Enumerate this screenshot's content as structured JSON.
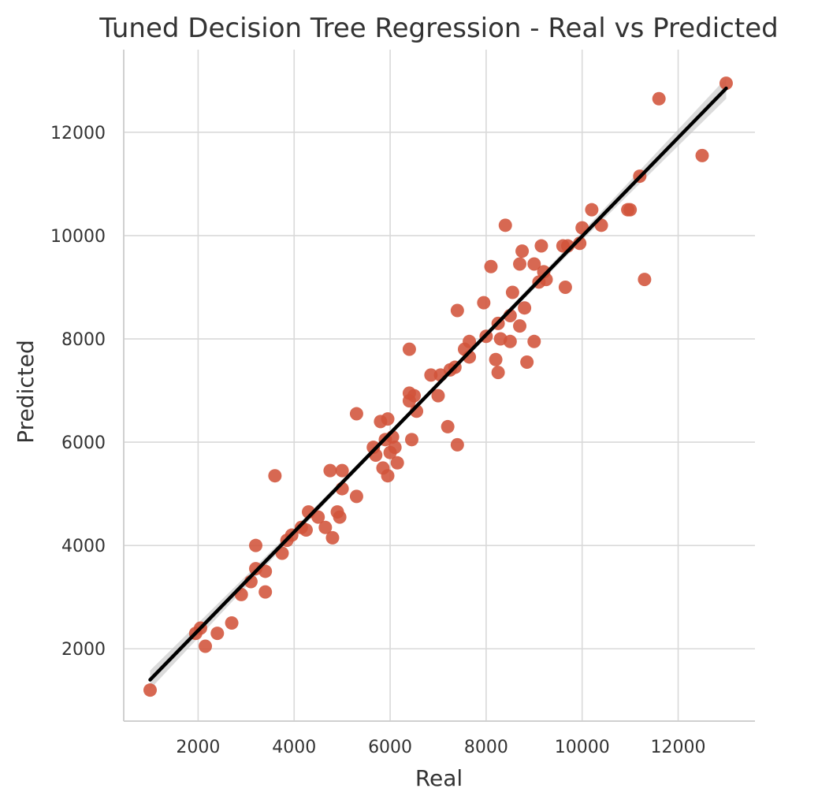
{
  "chart_data": {
    "type": "scatter",
    "title": "Tuned Decision Tree Regression - Real vs Predicted",
    "xlabel": "Real",
    "ylabel": "Predicted",
    "xlim": [
      450,
      13600
    ],
    "ylim": [
      600,
      13600
    ],
    "xticks": [
      2000,
      4000,
      6000,
      8000,
      10000,
      12000
    ],
    "yticks": [
      2000,
      4000,
      6000,
      8000,
      10000,
      12000
    ],
    "xtick_labels": [
      "2000",
      "4000",
      "6000",
      "8000",
      "10000",
      "12000"
    ],
    "ytick_labels": [
      "2000",
      "4000",
      "6000",
      "8000",
      "10000",
      "12000"
    ],
    "grid": true,
    "point_color": "#d1533a",
    "line_color": "#000000",
    "band_color": "#c8c8c8",
    "regression": {
      "x": [
        1000,
        13000
      ],
      "y": [
        1400,
        12850
      ]
    },
    "confidence_band": {
      "x": [
        1000,
        4000,
        7000,
        10000,
        13000
      ],
      "half_width": [
        180,
        70,
        40,
        80,
        200
      ]
    },
    "points": [
      [
        1000,
        1200
      ],
      [
        1950,
        2300
      ],
      [
        2050,
        2400
      ],
      [
        2150,
        2050
      ],
      [
        2400,
        2300
      ],
      [
        2700,
        2500
      ],
      [
        2900,
        3050
      ],
      [
        3100,
        3300
      ],
      [
        3200,
        3550
      ],
      [
        3200,
        4000
      ],
      [
        3400,
        3100
      ],
      [
        3400,
        3500
      ],
      [
        3600,
        5350
      ],
      [
        3750,
        3850
      ],
      [
        3850,
        4100
      ],
      [
        3950,
        4200
      ],
      [
        4150,
        4350
      ],
      [
        4250,
        4300
      ],
      [
        4300,
        4650
      ],
      [
        4500,
        4550
      ],
      [
        4650,
        4350
      ],
      [
        4750,
        5450
      ],
      [
        4800,
        4150
      ],
      [
        4900,
        4650
      ],
      [
        4950,
        4550
      ],
      [
        5000,
        5100
      ],
      [
        5000,
        5450
      ],
      [
        5300,
        4950
      ],
      [
        5300,
        6550
      ],
      [
        5650,
        5900
      ],
      [
        5700,
        5750
      ],
      [
        5800,
        6400
      ],
      [
        5850,
        5500
      ],
      [
        5900,
        6050
      ],
      [
        5950,
        5350
      ],
      [
        5950,
        6450
      ],
      [
        6000,
        5800
      ],
      [
        6050,
        6100
      ],
      [
        6100,
        5900
      ],
      [
        6150,
        5600
      ],
      [
        6400,
        6800
      ],
      [
        6400,
        6950
      ],
      [
        6400,
        7800
      ],
      [
        6450,
        6050
      ],
      [
        6500,
        6900
      ],
      [
        6550,
        6600
      ],
      [
        6850,
        7300
      ],
      [
        7000,
        6900
      ],
      [
        7050,
        7300
      ],
      [
        7200,
        6300
      ],
      [
        7250,
        7400
      ],
      [
        7350,
        7450
      ],
      [
        7400,
        5950
      ],
      [
        7400,
        8550
      ],
      [
        7550,
        7800
      ],
      [
        7650,
        7950
      ],
      [
        7650,
        7650
      ],
      [
        7950,
        8700
      ],
      [
        8000,
        8050
      ],
      [
        8100,
        9400
      ],
      [
        8200,
        7600
      ],
      [
        8250,
        7350
      ],
      [
        8250,
        8300
      ],
      [
        8300,
        8000
      ],
      [
        8400,
        10200
      ],
      [
        8500,
        7950
      ],
      [
        8500,
        8450
      ],
      [
        8550,
        8900
      ],
      [
        8700,
        9450
      ],
      [
        8700,
        8250
      ],
      [
        8750,
        9700
      ],
      [
        8800,
        8600
      ],
      [
        8850,
        7550
      ],
      [
        9000,
        7950
      ],
      [
        9000,
        9450
      ],
      [
        9100,
        9100
      ],
      [
        9150,
        9800
      ],
      [
        9200,
        9300
      ],
      [
        9250,
        9150
      ],
      [
        9600,
        9800
      ],
      [
        9700,
        9800
      ],
      [
        9650,
        9000
      ],
      [
        9950,
        9850
      ],
      [
        10000,
        10150
      ],
      [
        10200,
        10500
      ],
      [
        10400,
        10200
      ],
      [
        10950,
        10500
      ],
      [
        11000,
        10500
      ],
      [
        11200,
        11150
      ],
      [
        11300,
        9150
      ],
      [
        11600,
        12650
      ],
      [
        12500,
        11550
      ],
      [
        13000,
        12950
      ]
    ]
  }
}
